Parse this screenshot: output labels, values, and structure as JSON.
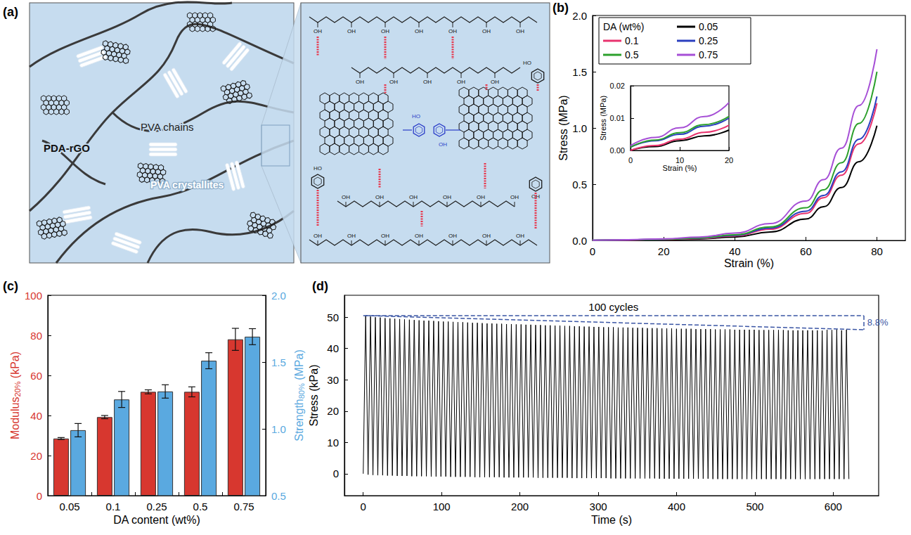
{
  "diagram": {
    "panel": "(a)",
    "labels": {
      "chains": "PVA chains",
      "filler": "PDA-rGO",
      "crystallites": "PVA crystallites"
    },
    "chemistry": {
      "hydroxyl": "OH",
      "catechol_hydroxyl": "HO"
    }
  },
  "chart_data": [
    {
      "panel": "(b)",
      "type": "line",
      "xlabel": "Strain (%)",
      "ylabel": "Stress (MPa)",
      "legend": "top-left",
      "legend_title": "DA (wt%)",
      "x": [
        0,
        10,
        20,
        30,
        40,
        50,
        60,
        65,
        70,
        75,
        80
      ],
      "series": [
        {
          "name": "0.05",
          "color": "#000000",
          "values": [
            0,
            0.003,
            0.0063,
            0.013,
            0.03,
            0.075,
            0.19,
            0.3,
            0.47,
            0.7,
            1.02
          ]
        },
        {
          "name": "0.1",
          "color": "#e8336e",
          "values": [
            0,
            0.0035,
            0.0078,
            0.017,
            0.04,
            0.1,
            0.24,
            0.38,
            0.58,
            0.86,
            1.22
          ]
        },
        {
          "name": "0.25",
          "color": "#2b3fbf",
          "values": [
            0.001,
            0.005,
            0.01,
            0.02,
            0.045,
            0.11,
            0.26,
            0.4,
            0.61,
            0.9,
            1.28
          ]
        },
        {
          "name": "0.5",
          "color": "#2ca02c",
          "values": [
            0.001,
            0.0055,
            0.0105,
            0.022,
            0.05,
            0.12,
            0.29,
            0.45,
            0.69,
            1.04,
            1.5
          ]
        },
        {
          "name": "0.75",
          "color": "#a64fd6",
          "values": [
            0.0015,
            0.007,
            0.0148,
            0.03,
            0.065,
            0.15,
            0.35,
            0.54,
            0.82,
            1.2,
            1.7
          ]
        }
      ],
      "xlim": [
        0,
        88
      ],
      "xticks": [
        0,
        20,
        40,
        60,
        80
      ],
      "ylim": [
        0,
        2
      ],
      "yticks": [
        {
          "value": 0,
          "label": "0.0"
        },
        0.5,
        {
          "value": 1,
          "label": "1.0"
        },
        1.5,
        {
          "value": 2,
          "label": "2.0"
        }
      ],
      "grid": false,
      "inset": {
        "type": "line",
        "xlabel": "Strain (%)",
        "ylabel": "Stress (MPa)",
        "x": [
          0,
          5,
          10,
          15,
          20
        ],
        "series": [
          {
            "name": "0.05",
            "color": "#000000",
            "values": [
              0,
              0.0012,
              0.003,
              0.0045,
              0.0063
            ]
          },
          {
            "name": "0.1",
            "color": "#e8336e",
            "values": [
              0,
              0.0015,
              0.0035,
              0.0056,
              0.0078
            ]
          },
          {
            "name": "0.25",
            "color": "#2b3fbf",
            "values": [
              0.001,
              0.003,
              0.005,
              0.0075,
              0.01
            ]
          },
          {
            "name": "0.5",
            "color": "#2ca02c",
            "values": [
              0.001,
              0.0032,
              0.0055,
              0.008,
              0.0105
            ]
          },
          {
            "name": "0.75",
            "color": "#a64fd6",
            "values": [
              0.0015,
              0.004,
              0.007,
              0.0105,
              0.0148
            ]
          }
        ],
        "xlim": [
          0,
          20
        ],
        "xticks": [
          0,
          10,
          20
        ],
        "ylim": [
          0,
          0.02
        ],
        "yticks": [
          {
            "value": 0,
            "label": "0.00"
          },
          0.01,
          0.02
        ],
        "grid": false
      }
    },
    {
      "panel": "(c)",
      "type": "bar",
      "xlabel": "DA content (wt%)",
      "ylabel": "Modulus20% (kPa)",
      "y2label": "Strength80% (MPa)",
      "categories": [
        "0.05",
        "0.1",
        "0.25",
        "0.5",
        "0.75"
      ],
      "series": [
        {
          "axis": "y",
          "color": "#d7372f",
          "values": [
            28.5,
            39.2,
            51.8,
            51.8,
            78
          ],
          "errors": [
            0.5,
            0.8,
            1.0,
            2.5,
            5.5
          ]
        },
        {
          "axis": "y2",
          "color": "#5aa9e0",
          "values": [
            0.99,
            1.22,
            1.28,
            1.51,
            1.69
          ],
          "errors": [
            0.05,
            0.06,
            0.05,
            0.06,
            0.06
          ]
        }
      ],
      "ylim": [
        0,
        100
      ],
      "yticks": [
        0,
        20,
        40,
        60,
        80,
        100
      ],
      "y2lim": [
        0.5,
        2
      ],
      "y2ticks": [
        0.5,
        {
          "value": 1,
          "label": "1.0"
        },
        1.5,
        {
          "value": 2,
          "label": "2.0"
        }
      ],
      "grid": false
    },
    {
      "panel": "(d)",
      "type": "line",
      "xlabel": "Time (s)",
      "ylabel": "Stress (kPa)",
      "color": "#000000",
      "annotations": [
        "100 cycles",
        "8.8%"
      ],
      "x": [
        0,
        3.1,
        6.2,
        9.3,
        12.4,
        15.5,
        18.6,
        21.7,
        24.8,
        27.9,
        31,
        34.1,
        37.2,
        40.3,
        43.4,
        46.5,
        49.6,
        52.7,
        55.8,
        58.9,
        62,
        65.1,
        68.2,
        71.3,
        74.4,
        77.5,
        80.6,
        83.7,
        86.8,
        89.9,
        93,
        96.1,
        99.2,
        102.3,
        105.4,
        108.5,
        111.6,
        114.7,
        117.8,
        120.9,
        124,
        127.1,
        130.2,
        133.3,
        136.4,
        139.5,
        142.6,
        145.7,
        148.8,
        151.9,
        155,
        158.1,
        161.2,
        164.3,
        167.4,
        170.5,
        173.6,
        176.7,
        179.8,
        182.9,
        186,
        189.1,
        192.2,
        195.3,
        198.4,
        201.5,
        204.6,
        207.7,
        210.8,
        213.9,
        217,
        220.1,
        223.2,
        226.3,
        229.4,
        232.5,
        235.6,
        238.7,
        241.8,
        244.9,
        248,
        251.1,
        254.2,
        257.3,
        260.4,
        263.5,
        266.6,
        269.7,
        272.8,
        275.9,
        279,
        282.1,
        285.2,
        288.3,
        291.4,
        294.5,
        297.6,
        300.7,
        303.8,
        306.9,
        310,
        313.1,
        316.2,
        319.3,
        322.4,
        325.5,
        328.6,
        331.7,
        334.8,
        337.9,
        341,
        344.1,
        347.2,
        350.3,
        353.4,
        356.5,
        359.6,
        362.7,
        365.8,
        368.9,
        372,
        375.1,
        378.2,
        381.3,
        384.4,
        387.5,
        390.6,
        393.7,
        396.8,
        399.9,
        403,
        406.1,
        409.2,
        412.3,
        415.4,
        418.5,
        421.6,
        424.7,
        427.8,
        430.9,
        434,
        437.1,
        440.2,
        443.3,
        446.4,
        449.5,
        452.6,
        455.7,
        458.8,
        461.9,
        465,
        468.1,
        471.2,
        474.3,
        477.4,
        480.5,
        483.6,
        486.7,
        489.8,
        492.9,
        496,
        499.1,
        502.2,
        505.3,
        508.4,
        511.5,
        514.6,
        517.7,
        520.8,
        523.9,
        527,
        530.1,
        533.2,
        536.3,
        539.4,
        542.5,
        545.6,
        548.7,
        551.8,
        554.9,
        558,
        561.1,
        564.2,
        567.3,
        570.4,
        573.5,
        576.6,
        579.7,
        582.8,
        585.9,
        589,
        592.1,
        595.2,
        598.3,
        601.4,
        604.5,
        607.6,
        610.7,
        613.8,
        616.9,
        620
      ],
      "values": [
        0,
        50.5,
        -0.3,
        50.2,
        -0.4,
        50.0,
        -0.5,
        49.9,
        -0.5,
        49.7,
        -0.6,
        49.6,
        -0.6,
        49.5,
        -0.7,
        49.4,
        -0.7,
        49.3,
        -0.7,
        49.2,
        -0.8,
        49.1,
        -0.8,
        49.0,
        -0.8,
        48.9,
        -0.8,
        48.9,
        -0.9,
        48.8,
        -0.9,
        48.7,
        -0.9,
        48.6,
        -0.9,
        48.6,
        -1.0,
        48.5,
        -1.0,
        48.4,
        -1.0,
        48.4,
        -1.0,
        48.3,
        -1.0,
        48.2,
        -1.1,
        48.2,
        -1.1,
        48.1,
        -1.1,
        48.0,
        -1.1,
        48.0,
        -1.1,
        47.9,
        -1.1,
        47.9,
        -1.2,
        47.8,
        -1.2,
        47.8,
        -1.2,
        47.7,
        -1.2,
        47.7,
        -1.2,
        47.6,
        -1.2,
        47.6,
        -1.2,
        47.5,
        -1.3,
        47.5,
        -1.3,
        47.4,
        -1.3,
        47.4,
        -1.3,
        47.3,
        -1.3,
        47.3,
        -1.3,
        47.2,
        -1.3,
        47.2,
        -1.4,
        47.1,
        -1.4,
        47.1,
        -1.4,
        47.0,
        -1.4,
        47.0,
        -1.4,
        46.9,
        -1.4,
        46.9,
        -1.4,
        46.8,
        -1.4,
        46.8,
        -1.5,
        46.8,
        -1.5,
        46.7,
        -1.5,
        46.7,
        -1.5,
        46.7,
        -1.5,
        46.6,
        -1.5,
        46.6,
        -1.5,
        46.6,
        -1.5,
        46.5,
        -1.5,
        46.5,
        -1.5,
        46.5,
        -1.6,
        46.4,
        -1.6,
        46.4,
        -1.6,
        46.4,
        -1.6,
        46.3,
        -1.6,
        46.3,
        -1.6,
        46.3,
        -1.6,
        46.3,
        -1.6,
        46.2,
        -1.6,
        46.2,
        -1.6,
        46.2,
        -1.6,
        46.2,
        -1.7,
        46.1,
        -1.7,
        46.1,
        -1.7,
        46.1,
        -1.7,
        46.1,
        -1.7,
        46.0,
        -1.7,
        46.0,
        -1.7,
        46.0,
        -1.7,
        46.0,
        -1.7,
        46.0,
        -1.7,
        45.9,
        -1.7,
        45.9,
        -1.7,
        45.9,
        -1.7,
        45.9,
        -1.7,
        45.9,
        -1.7,
        45.9,
        -1.7,
        45.8,
        -1.7,
        45.8,
        -1.7,
        45.8,
        -1.7,
        45.8,
        -1.7,
        45.8,
        -1.7,
        45.8,
        -1.7,
        45.8,
        -1.7,
        45.7,
        -1.7,
        46.0,
        -1.7,
        45.9,
        -1.7,
        46.1,
        -1.7,
        45.8,
        -1.7,
        46.0,
        -1.7
      ],
      "xlim": [
        -24,
        658
      ],
      "xticks": [
        0,
        100,
        200,
        300,
        400,
        500,
        600
      ],
      "ylim": [
        -7,
        57
      ],
      "yticks": [
        0,
        10,
        20,
        30,
        40,
        50
      ],
      "grid": false
    }
  ]
}
